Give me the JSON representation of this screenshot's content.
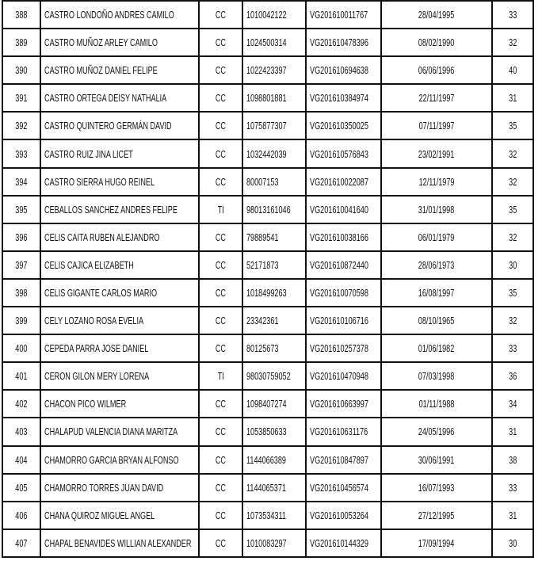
{
  "table": {
    "rows": [
      [
        "388",
        "CASTRO LONDOÑO ANDRES CAMILO",
        "CC",
        "1010042122",
        "VG201610011767",
        "28/04/1995",
        "33"
      ],
      [
        "389",
        "CASTRO MUÑOZ ARLEY CAMILO",
        "CC",
        "1024500314",
        "VG201610478396",
        "08/02/1990",
        "32"
      ],
      [
        "390",
        "CASTRO MUÑOZ DANIEL FELIPE",
        "CC",
        "1022423397",
        "VG201610694638",
        "06/06/1996",
        "40"
      ],
      [
        "391",
        "CASTRO ORTEGA DEISY NATHALIA",
        "CC",
        "1098801881",
        "VG201610384974",
        "22/11/1997",
        "31"
      ],
      [
        "392",
        "CASTRO QUINTERO GERMÁN DAVID",
        "CC",
        "1075877307",
        "VG201610350025",
        "07/11/1997",
        "35"
      ],
      [
        "393",
        "CASTRO RUIZ JINA LICET",
        "CC",
        "1032442039",
        "VG201610576843",
        "23/02/1991",
        "32"
      ],
      [
        "394",
        "CASTRO SIERRA HUGO REINEL",
        "CC",
        "80007153",
        "VG201610022087",
        "12/11/1979",
        "32"
      ],
      [
        "395",
        "CEBALLOS SANCHEZ ANDRES FELIPE",
        "TI",
        "98013161046",
        "VG201610041640",
        "31/01/1998",
        "35"
      ],
      [
        "396",
        "CELIS CAITA RUBEN ALEJANDRO",
        "CC",
        "79889541",
        "VG201610038166",
        "06/01/1979",
        "32"
      ],
      [
        "397",
        "CELIS CAJICA ELIZABETH",
        "CC",
        "52171873",
        "VG201610872440",
        "28/06/1973",
        "30"
      ],
      [
        "398",
        "CELIS GIGANTE CARLOS MARIO",
        "CC",
        "1018499263",
        "VG201610070598",
        "16/08/1997",
        "35"
      ],
      [
        "399",
        "CELY LOZANO ROSA EVELIA",
        "CC",
        "23342361",
        "VG201610106716",
        "08/10/1965",
        "32"
      ],
      [
        "400",
        "CEPEDA PARRA JOSE DANIEL",
        "CC",
        "80125673",
        "VG201610257378",
        "01/06/1982",
        "33"
      ],
      [
        "401",
        "CERON GILON MERY LORENA",
        "TI",
        "98030759052",
        "VG201610470948",
        "07/03/1998",
        "36"
      ],
      [
        "402",
        "CHACON PICO WILMER",
        "CC",
        "1098407274",
        "VG201610663997",
        "01/11/1988",
        "34"
      ],
      [
        "403",
        "CHALAPUD VALENCIA DIANA MARITZA",
        "CC",
        "1053850633",
        "VG201610631176",
        "24/05/1996",
        "31"
      ],
      [
        "404",
        "CHAMORRO GARCIA BRYAN ALFONSO",
        "CC",
        "1144066389",
        "VG201610847897",
        "30/06/1991",
        "38"
      ],
      [
        "405",
        "CHAMORRO TORRES JUAN DAVID",
        "CC",
        "1144065371",
        "VG201610456574",
        "16/07/1993",
        "33"
      ],
      [
        "406",
        "CHANA QUIROZ MIGUEL ANGEL",
        "CC",
        "1073534311",
        "VG201610053264",
        "27/12/1995",
        "31"
      ],
      [
        "407",
        "CHAPAL BENAVIDES WILLIAN ALEXANDER",
        "CC",
        "1010083297",
        "VG201610144329",
        "17/09/1994",
        "30"
      ]
    ]
  }
}
